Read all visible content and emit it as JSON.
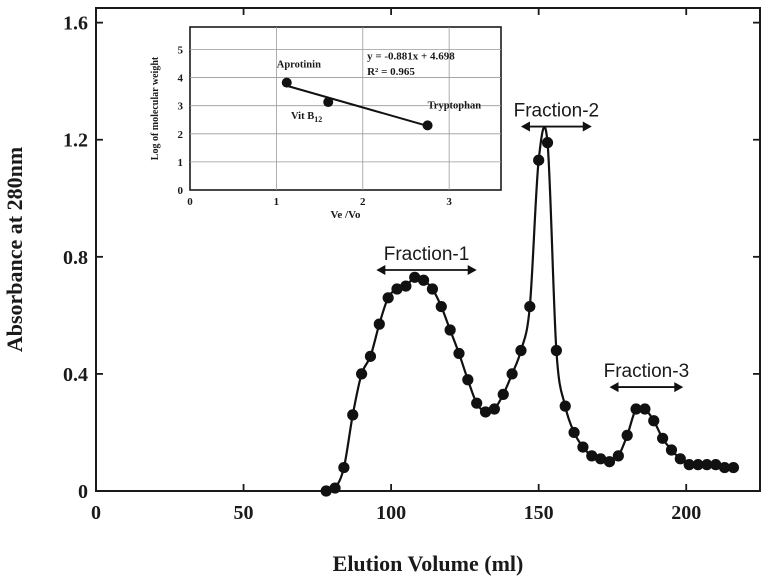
{
  "chart_data": [
    {
      "type": "line",
      "xlabel": "Elution Volume (ml)",
      "ylabel": "Absorbance at 280nm",
      "xlim": [
        0,
        225
      ],
      "ylim": [
        0,
        1.65
      ],
      "xticks": [
        0,
        50,
        100,
        150,
        200
      ],
      "yticks": [
        0,
        0.4,
        0.8,
        1.2,
        1.6
      ],
      "ytick_labels": [
        "0",
        "0.4",
        "0.8",
        "1.2",
        "1.6"
      ],
      "grid": false,
      "series": [
        {
          "x": [
            78,
            81,
            84,
            87,
            90,
            93,
            96,
            99,
            102,
            105,
            108,
            111,
            114,
            117,
            120,
            123,
            126,
            129,
            132,
            135,
            138,
            141,
            144,
            147,
            150,
            153,
            156,
            159,
            162,
            165,
            168,
            171,
            174,
            177,
            180,
            183,
            186,
            189,
            192,
            195,
            198,
            201,
            204,
            207,
            210,
            213,
            216
          ],
          "y": [
            0.0,
            0.01,
            0.08,
            0.26,
            0.4,
            0.46,
            0.57,
            0.66,
            0.69,
            0.7,
            0.73,
            0.72,
            0.69,
            0.63,
            0.55,
            0.47,
            0.38,
            0.3,
            0.27,
            0.28,
            0.33,
            0.4,
            0.48,
            0.63,
            1.13,
            1.19,
            0.48,
            0.29,
            0.2,
            0.15,
            0.12,
            0.11,
            0.1,
            0.12,
            0.19,
            0.28,
            0.28,
            0.24,
            0.18,
            0.14,
            0.11,
            0.09,
            0.09,
            0.09,
            0.09,
            0.08,
            0.08
          ]
        }
      ],
      "annotations": [
        {
          "text": "Fraction-1",
          "x_from": 95,
          "x_to": 129
        },
        {
          "text": "Fraction-2",
          "x_from": 144,
          "x_to": 168
        },
        {
          "text": "Fraction-3",
          "x_from": 174,
          "x_to": 199
        }
      ]
    },
    {
      "type": "scatter",
      "xlabel": "Ve /Vo",
      "ylabel": "Log of molecular weight",
      "xlim": [
        0,
        3.6
      ],
      "ylim": [
        0,
        5.8
      ],
      "xticks": [
        0,
        1,
        2,
        3
      ],
      "yticks": [
        0,
        1,
        2,
        3,
        4,
        5
      ],
      "grid": true,
      "points": [
        {
          "label": "Aprotinin",
          "x": 1.12,
          "y": 3.82
        },
        {
          "label": "Vit B",
          "label_sub": "12",
          "x": 1.6,
          "y": 3.13
        },
        {
          "label": "Tryptophan",
          "x": 2.75,
          "y": 2.3
        }
      ],
      "trendline": {
        "x": [
          1.12,
          2.75
        ],
        "y": [
          3.71,
          2.28
        ]
      },
      "equation": "y = -0.881x + 4.698",
      "r2": "R² = 0.965"
    }
  ]
}
